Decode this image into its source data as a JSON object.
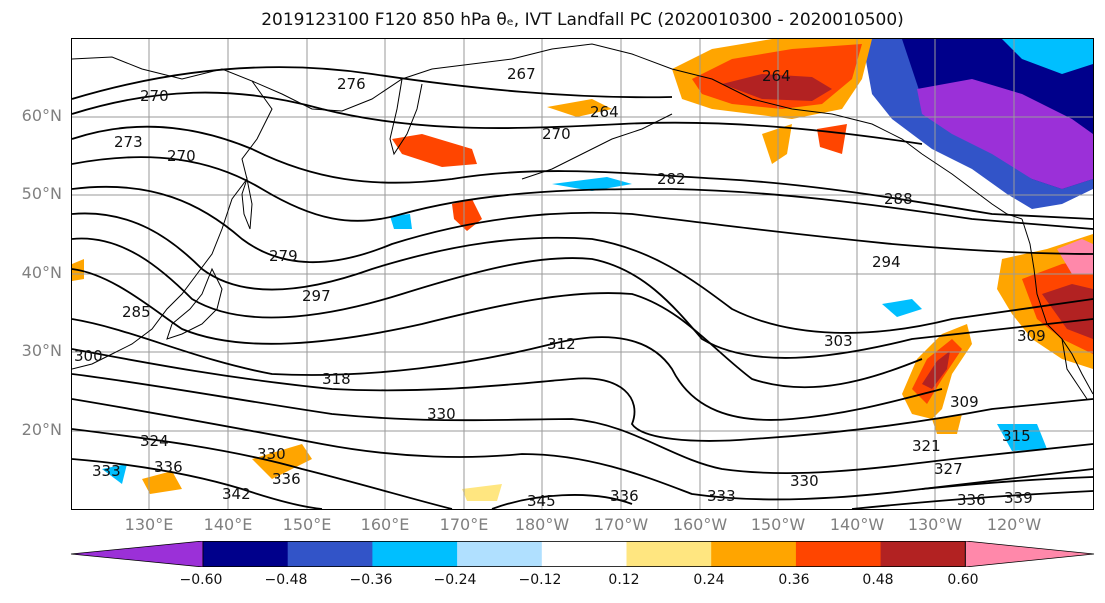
{
  "title": "2019123100 F120 850 hPa θₑ, IVT Landfall PC (2020010300 - 2020010500)",
  "colors": {
    "land_outline": "#000000",
    "contour": "#000000",
    "grid": "#9a9a9a",
    "axis_label": "#808080"
  },
  "latitude_labels": [
    "60°N",
    "50°N",
    "40°N",
    "30°N",
    "20°N"
  ],
  "longitude_labels": [
    "130°E",
    "140°E",
    "150°E",
    "160°E",
    "170°E",
    "180°W",
    "170°W",
    "160°W",
    "150°W",
    "140°W",
    "130°W",
    "120°W"
  ],
  "colorbar": {
    "extend": "both",
    "bins": [
      {
        "color": "#9b30d8"
      },
      {
        "color": "#00008b"
      },
      {
        "color": "#3254c8"
      },
      {
        "color": "#00bfff"
      },
      {
        "color": "#b0e0ff"
      },
      {
        "color": "#ffffff"
      },
      {
        "color": "#ffe680"
      },
      {
        "color": "#ffa500"
      },
      {
        "color": "#ff4500"
      },
      {
        "color": "#b22222"
      },
      {
        "color": "#ff88aa"
      }
    ],
    "tick_labels": [
      "−0.60",
      "−0.48",
      "−0.36",
      "−0.24",
      "−0.12",
      "0.12",
      "0.24",
      "0.36",
      "0.48",
      "0.60"
    ]
  },
  "contour_labels": [
    "270",
    "276",
    "267",
    "264",
    "264",
    "273",
    "270",
    "270",
    "282",
    "288",
    "279",
    "297",
    "294",
    "285",
    "312",
    "303",
    "300",
    "318",
    "309",
    "309",
    "330",
    "324",
    "321",
    "315",
    "336",
    "330",
    "327",
    "333",
    "336",
    "339",
    "336",
    "342",
    "345",
    "336",
    "330",
    "333"
  ]
}
